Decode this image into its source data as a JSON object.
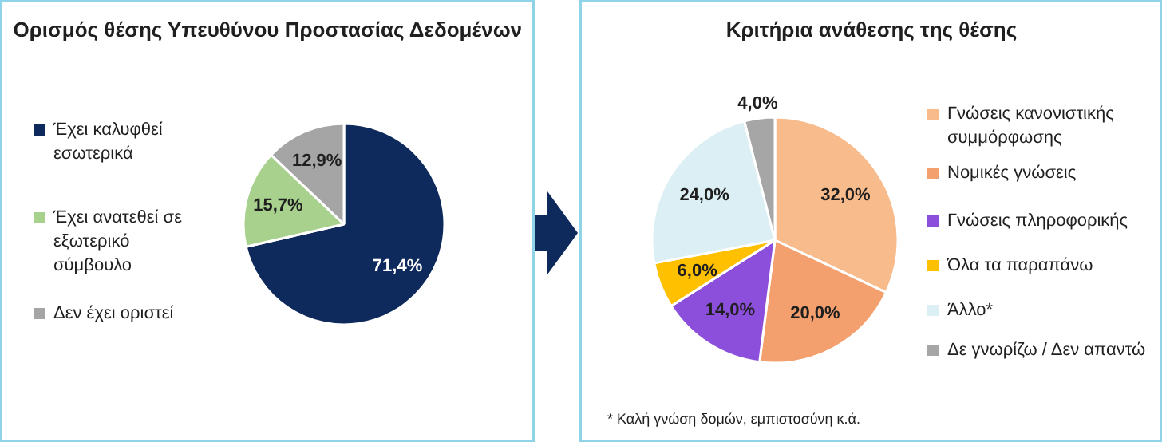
{
  "chart_data": [
    {
      "type": "pie",
      "title": "Ορισμός θέσης Υπευθύνου Προστασίας Δεδομένων",
      "categories": [
        "Έχει καλυφθεί εσωτερικά",
        "Έχει ανατεθεί σε εξωτερικό σύμβουλο",
        "Δεν έχει οριστεί"
      ],
      "values": [
        71.4,
        15.7,
        12.9
      ],
      "value_labels": [
        "71,4%",
        "15,7%",
        "12,9%"
      ],
      "colors": [
        "#0e2a5c",
        "#a9d18e",
        "#a5a5a5"
      ],
      "legend": "left"
    },
    {
      "type": "pie",
      "title": "Κριτήρια ανάθεσης της θέσης",
      "categories": [
        "Γνώσεις κανονιστικής συμμόρφωσης",
        "Νομικές γνώσεις",
        "Γνώσεις πληροφορικής",
        "Όλα τα παραπάνω",
        "Άλλο*",
        "Δε γνωρίζω / Δεν απαντώ"
      ],
      "values": [
        32.0,
        20.0,
        14.0,
        6.0,
        24.0,
        4.0
      ],
      "value_labels": [
        "32,0%",
        "20,0%",
        "14,0%",
        "6,0%",
        "24,0%",
        "4,0%"
      ],
      "colors": [
        "#f8bb8c",
        "#f4a06e",
        "#8b4fdc",
        "#ffc000",
        "#dbeff4",
        "#a6a6a6"
      ],
      "legend": "right",
      "annotations": [
        "* Καλή γνώση δομών, εμπιστοσύνη κ.ά."
      ]
    }
  ]
}
